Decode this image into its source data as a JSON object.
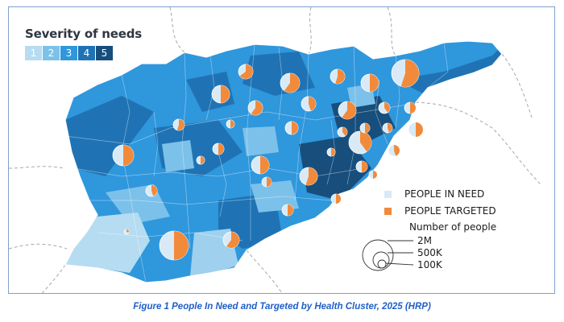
{
  "legend": {
    "severity_title": "Severity of needs",
    "severity_levels": [
      {
        "label": "1",
        "color": "#b6dcf1"
      },
      {
        "label": "2",
        "color": "#7cc1ea"
      },
      {
        "label": "3",
        "color": "#2f97dc"
      },
      {
        "label": "4",
        "color": "#1f73b4"
      },
      {
        "label": "5",
        "color": "#174e7c"
      }
    ],
    "people_in_need_label": "PEOPLE IN NEED",
    "people_in_need_color": "#d9eaf6",
    "people_targeted_label": "PEOPLE TARGETED",
    "people_targeted_color": "#f28a3c",
    "number_title": "Number of people",
    "size_labels": [
      "2M",
      "500K",
      "100K"
    ]
  },
  "caption": "Figure 1 People In Need and Targeted by Health Cluster, 2025 (HRP)"
}
